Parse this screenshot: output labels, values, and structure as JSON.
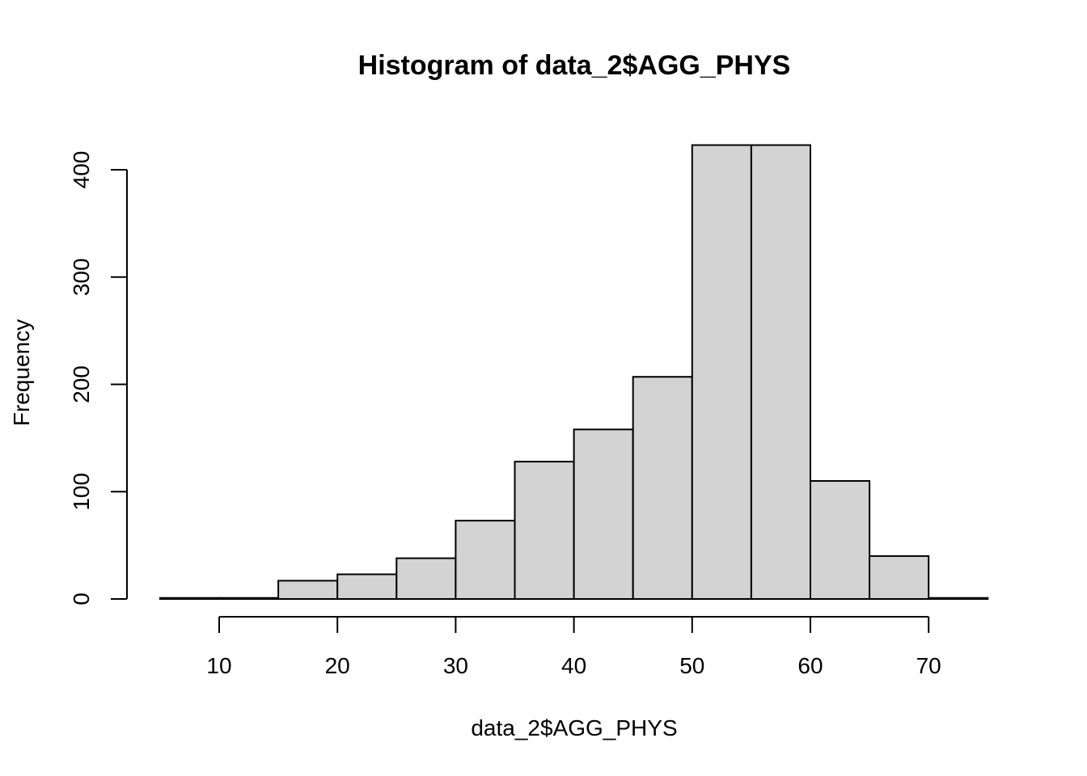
{
  "chart_data": {
    "type": "bar",
    "subtype": "histogram",
    "title": "Histogram of data_2$AGG_PHYS",
    "xlabel": "data_2$AGG_PHYS",
    "ylabel": "Frequency",
    "bins": [
      {
        "from": 5,
        "to": 10,
        "count": 1
      },
      {
        "from": 10,
        "to": 15,
        "count": 1
      },
      {
        "from": 15,
        "to": 20,
        "count": 17
      },
      {
        "from": 20,
        "to": 25,
        "count": 23
      },
      {
        "from": 25,
        "to": 30,
        "count": 38
      },
      {
        "from": 30,
        "to": 35,
        "count": 73
      },
      {
        "from": 35,
        "to": 40,
        "count": 128
      },
      {
        "from": 40,
        "to": 45,
        "count": 158
      },
      {
        "from": 45,
        "to": 50,
        "count": 207
      },
      {
        "from": 50,
        "to": 55,
        "count": 423
      },
      {
        "from": 55,
        "to": 60,
        "count": 423
      },
      {
        "from": 60,
        "to": 65,
        "count": 110
      },
      {
        "from": 65,
        "to": 70,
        "count": 40
      },
      {
        "from": 70,
        "to": 75,
        "count": 1
      }
    ],
    "xticks": [
      "10",
      "20",
      "30",
      "40",
      "50",
      "60",
      "70"
    ],
    "yticks": [
      "0",
      "100",
      "200",
      "300",
      "400"
    ],
    "xlim": [
      5,
      75
    ],
    "ylim": [
      0,
      400
    ],
    "bar_color": "#d3d3d3",
    "grid": false,
    "legend": "none"
  }
}
